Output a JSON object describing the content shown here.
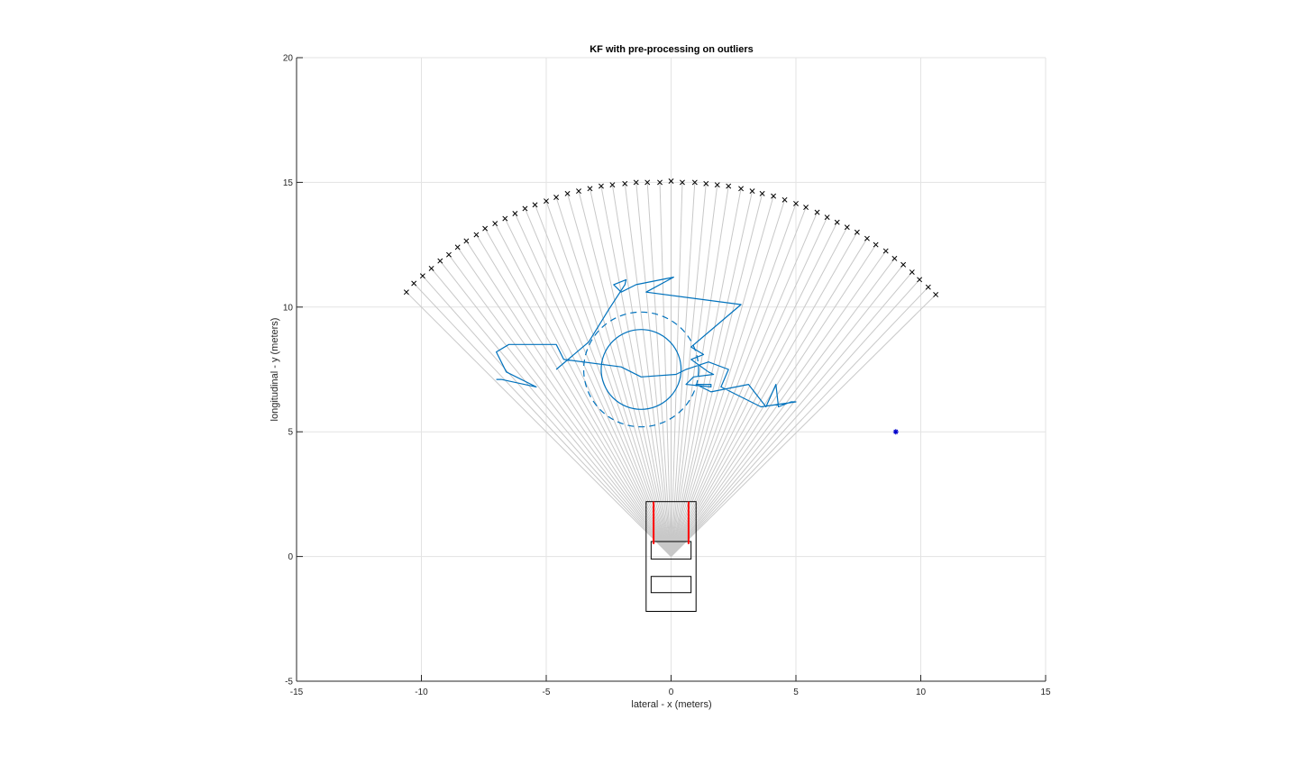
{
  "chart_data": {
    "type": "scatter",
    "title": "KF with pre-processing on outliers",
    "xlabel": "lateral - x (meters)",
    "ylabel": "longitudinal - y (meters)",
    "xlim": [
      -15,
      15
    ],
    "ylim": [
      -5,
      20
    ],
    "xticks": [
      -15,
      -10,
      -5,
      0,
      5,
      10,
      15
    ],
    "yticks": [
      -5,
      0,
      5,
      10,
      15,
      20
    ],
    "grid": true,
    "colors": {
      "track": "#0072bd",
      "rays": "#c8c8c8",
      "markers": "#000000",
      "radar": "#ff0000",
      "target": "#0000cc",
      "vehicle": "#000000"
    },
    "sensor_origin": [
      0,
      0
    ],
    "ray_count": 53,
    "radar_ray_endpoints": [
      [
        -10.6,
        10.6
      ],
      [
        -10.3,
        10.95
      ],
      [
        -9.95,
        11.25
      ],
      [
        -9.6,
        11.55
      ],
      [
        -9.25,
        11.85
      ],
      [
        -8.9,
        12.1
      ],
      [
        -8.55,
        12.4
      ],
      [
        -8.2,
        12.65
      ],
      [
        -7.8,
        12.9
      ],
      [
        -7.45,
        13.15
      ],
      [
        -7.05,
        13.35
      ],
      [
        -6.65,
        13.55
      ],
      [
        -6.25,
        13.75
      ],
      [
        -5.85,
        13.95
      ],
      [
        -5.45,
        14.1
      ],
      [
        -5.0,
        14.25
      ],
      [
        -4.6,
        14.4
      ],
      [
        -4.15,
        14.55
      ],
      [
        -3.7,
        14.65
      ],
      [
        -3.25,
        14.75
      ],
      [
        -2.8,
        14.85
      ],
      [
        -2.35,
        14.9
      ],
      [
        -1.85,
        14.95
      ],
      [
        -1.4,
        15.0
      ],
      [
        -0.95,
        15.0
      ],
      [
        -0.45,
        15.0
      ],
      [
        0.0,
        15.05
      ],
      [
        0.45,
        15.0
      ],
      [
        0.95,
        15.0
      ],
      [
        1.4,
        14.95
      ],
      [
        1.85,
        14.9
      ],
      [
        2.3,
        14.85
      ],
      [
        2.8,
        14.75
      ],
      [
        3.25,
        14.65
      ],
      [
        3.65,
        14.55
      ],
      [
        4.1,
        14.45
      ],
      [
        4.55,
        14.3
      ],
      [
        5.0,
        14.15
      ],
      [
        5.4,
        14.0
      ],
      [
        5.85,
        13.8
      ],
      [
        6.25,
        13.6
      ],
      [
        6.65,
        13.4
      ],
      [
        7.05,
        13.2
      ],
      [
        7.45,
        13.0
      ],
      [
        7.85,
        12.75
      ],
      [
        8.2,
        12.5
      ],
      [
        8.6,
        12.25
      ],
      [
        8.95,
        11.95
      ],
      [
        9.3,
        11.7
      ],
      [
        9.65,
        11.4
      ],
      [
        9.95,
        11.1
      ],
      [
        10.3,
        10.8
      ],
      [
        10.6,
        10.5
      ]
    ],
    "kf_track": [
      [
        -4.6,
        7.5
      ],
      [
        -3.3,
        8.6
      ],
      [
        -2.5,
        9.9
      ],
      [
        -1.85,
        10.9
      ],
      [
        -1.8,
        11.1
      ],
      [
        -2.3,
        10.9
      ],
      [
        -2.0,
        10.6
      ],
      [
        -1.4,
        10.9
      ],
      [
        0.1,
        11.2
      ],
      [
        -1.0,
        10.6
      ],
      [
        2.8,
        10.1
      ],
      [
        0.8,
        8.4
      ],
      [
        1.3,
        8.1
      ],
      [
        0.8,
        7.9
      ],
      [
        1.5,
        7.4
      ],
      [
        1.7,
        7.3
      ],
      [
        0.9,
        7.2
      ],
      [
        0.6,
        6.9
      ],
      [
        1.6,
        6.8
      ],
      [
        1.6,
        6.9
      ],
      [
        1.0,
        6.9
      ],
      [
        1.6,
        6.6
      ],
      [
        3.1,
        6.9
      ],
      [
        3.8,
        6.0
      ],
      [
        4.2,
        6.9
      ],
      [
        4.3,
        6.0
      ],
      [
        4.8,
        6.2
      ],
      [
        5.0,
        6.2
      ],
      [
        3.6,
        6.0
      ],
      [
        2.0,
        6.8
      ],
      [
        2.3,
        7.5
      ],
      [
        1.5,
        7.8
      ],
      [
        0.6,
        7.5
      ],
      [
        0.2,
        7.3
      ],
      [
        -1.2,
        7.2
      ],
      [
        -2.0,
        7.6
      ],
      [
        -4.3,
        7.9
      ],
      [
        -4.6,
        8.5
      ],
      [
        -6.5,
        8.5
      ],
      [
        -7.0,
        8.2
      ],
      [
        -6.6,
        7.4
      ],
      [
        -5.4,
        6.8
      ],
      [
        -6.8,
        7.1
      ],
      [
        -7.0,
        7.1
      ]
    ],
    "estimate_inner_circle": {
      "center": [
        -1.2,
        7.5
      ],
      "radius": 1.6
    },
    "estimate_outer_circle": {
      "center": [
        -1.2,
        7.5
      ],
      "radius": 2.3,
      "style": "dashed"
    },
    "target_point": [
      9.0,
      5.0
    ],
    "vehicle": {
      "body": {
        "x": [
          -1.0,
          1.0
        ],
        "y": [
          -2.2,
          2.2
        ]
      },
      "windshield": {
        "x": [
          -0.8,
          0.8
        ],
        "y": [
          -0.1,
          0.6
        ]
      },
      "rear_window": {
        "x": [
          -0.8,
          0.8
        ],
        "y": [
          -1.45,
          -0.8
        ]
      },
      "radar_mounts": [
        {
          "x": -0.7,
          "y": [
            0.5,
            2.2
          ]
        },
        {
          "x": 0.7,
          "y": [
            0.5,
            2.2
          ]
        }
      ]
    }
  }
}
